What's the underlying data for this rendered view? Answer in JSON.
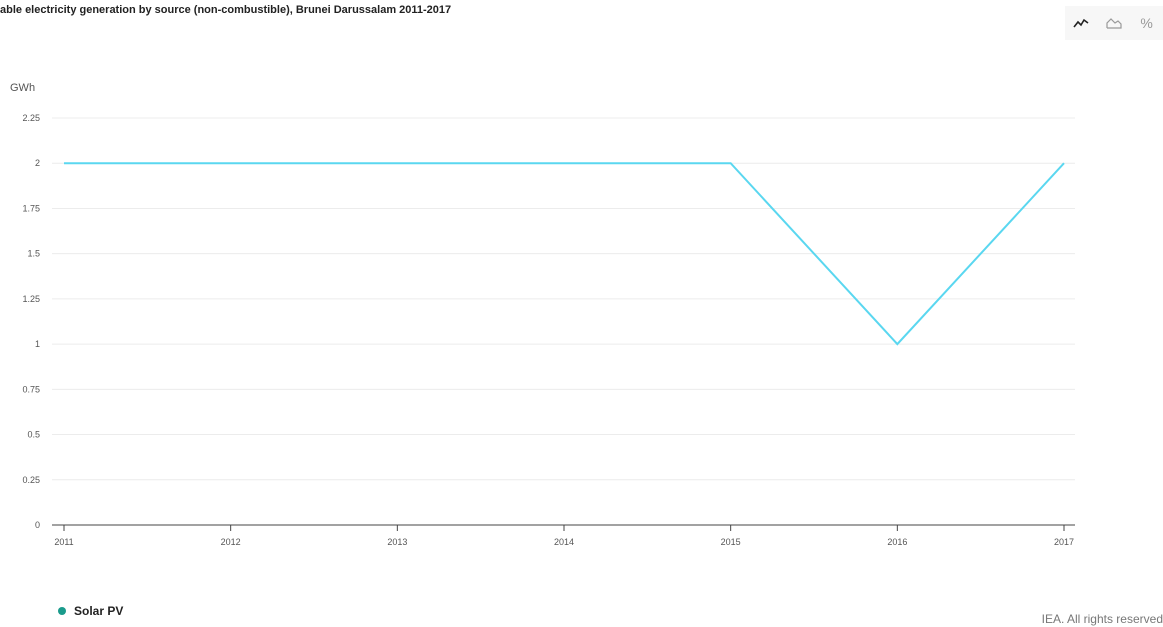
{
  "header": {
    "title": "able electricity generation by source (non-combustible), Brunei Darussalam 2011-2017"
  },
  "toolbar": {
    "buttons": [
      {
        "icon": "line-chart-icon",
        "active": true
      },
      {
        "icon": "area-chart-icon",
        "active": false
      },
      {
        "icon": "percent-icon",
        "label": "%",
        "active": false
      }
    ]
  },
  "chart_data": {
    "type": "line",
    "title": "able electricity generation by source (non-combustible), Brunei Darussalam 2011-2017",
    "ylabel": "GWh",
    "x": [
      "2011",
      "2012",
      "2013",
      "2014",
      "2015",
      "2016",
      "2017"
    ],
    "yticks": [
      "0",
      "0.25",
      "0.5",
      "0.75",
      "1",
      "1.25",
      "1.5",
      "1.75",
      "2",
      "2.25"
    ],
    "ylim": [
      0,
      2.25
    ],
    "grid": true,
    "legend_position": "bottom-left",
    "series": [
      {
        "name": "Solar PV",
        "values": [
          2,
          2,
          2,
          2,
          2,
          1,
          2
        ],
        "color": "#5ad7f0",
        "legend_color": "#1a9b8c"
      }
    ]
  },
  "legend": {
    "label": "Solar PV",
    "color": "#1a9b8c"
  },
  "footer": {
    "credit": "IEA. All rights reserved"
  }
}
